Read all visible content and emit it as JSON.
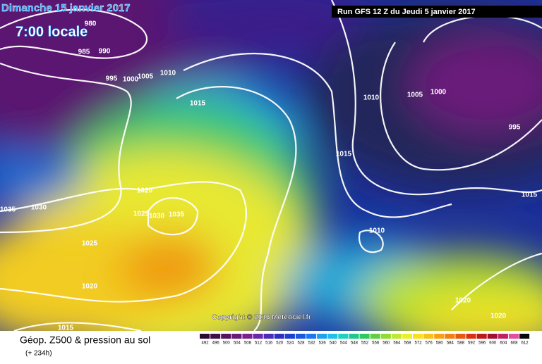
{
  "header": {
    "date": "Dimanche 15 janvier 2017",
    "time": "7:00 locale",
    "run": "Run GFS 12 Z du Jeudi 5 janvier 2017"
  },
  "copyright": "Copyright © 2016 Meteociel.fr",
  "isobar_labels": [
    "980",
    "985",
    "990",
    "995",
    "1000",
    "1005",
    "1010",
    "1015",
    "1020",
    "1025",
    "1030",
    "1035",
    "1035",
    "1030",
    "1025",
    "1020",
    "1015",
    "1015",
    "1010",
    "1005",
    "1000",
    "995",
    "1015",
    "1010",
    "1020",
    "1020"
  ],
  "legend": {
    "title": "Géop. Z500 & pression au sol",
    "lead": "(+ 234h)",
    "scale": [
      "492",
      "496",
      "500",
      "504",
      "508",
      "512",
      "516",
      "520",
      "524",
      "528",
      "532",
      "536",
      "540",
      "544",
      "548",
      "552",
      "556",
      "560",
      "564",
      "568",
      "572",
      "576",
      "580",
      "584",
      "588",
      "592",
      "596",
      "600",
      "604",
      "608",
      "612"
    ]
  }
}
